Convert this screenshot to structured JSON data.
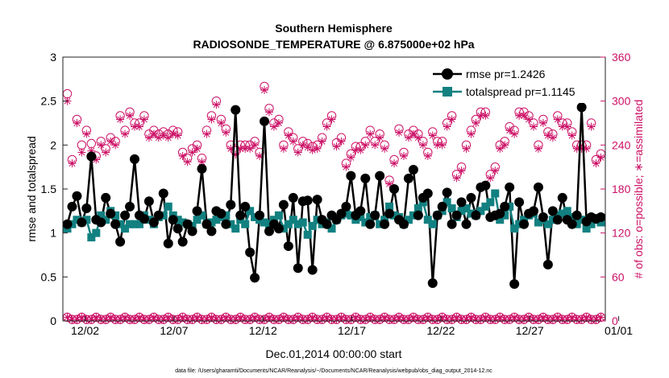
{
  "chart_data": {
    "type": "line",
    "title": "Southern Hemisphere",
    "subtitle": "RADIOSONDE_TEMPERATURE @ 6.875000e+02 hPa",
    "xlabel": "Dec.01,2014 00:00:00 start",
    "ylabel_left": "rmse and totalspread",
    "ylabel_right": "# of obs: o=possible; ∗=assimilated",
    "ylim_left": [
      0,
      3
    ],
    "ylim_right": [
      0,
      360
    ],
    "xlim": [
      0.75,
      31.25
    ],
    "grid": false,
    "legend_position": "top-right",
    "yticks_left": [
      "0",
      "0.5",
      "1",
      "1.5",
      "2",
      "2.5",
      "3"
    ],
    "yticks_right": [
      "0",
      "60",
      "120",
      "180",
      "240",
      "300",
      "360"
    ],
    "xticks": [
      {
        "day": 2,
        "label": "12/02"
      },
      {
        "day": 7,
        "label": "12/07"
      },
      {
        "day": 12,
        "label": "12/12"
      },
      {
        "day": 17,
        "label": "12/17"
      },
      {
        "day": 22,
        "label": "12/22"
      },
      {
        "day": 27,
        "label": "12/27"
      },
      {
        "day": 32,
        "label": "01/01"
      }
    ],
    "colors": {
      "rmse": "#000000",
      "spread": "#128080",
      "obs": "#cc1166"
    },
    "series": [
      {
        "name": "rmse pr=1.2426",
        "key": "rmse",
        "values": [
          1.1,
          1.3,
          1.42,
          1.12,
          1.28,
          1.87,
          1.15,
          1.12,
          1.4,
          1.22,
          1.1,
          0.9,
          1.2,
          1.3,
          1.84,
          1.2,
          1.16,
          1.36,
          1.12,
          1.2,
          1.45,
          0.88,
          1.15,
          1.05,
          0.9,
          1.1,
          1.02,
          1.25,
          1.73,
          1.1,
          1.02,
          1.25,
          1.22,
          1.1,
          1.32,
          2.4,
          1.2,
          1.3,
          0.78,
          0.49,
          1.2,
          2.27,
          1.02,
          1.1,
          1.05,
          1.32,
          0.85,
          1.4,
          0.6,
          1.36,
          1.37,
          0.58,
          1.38,
          1.15,
          1.1,
          1.2,
          1.15,
          1.22,
          1.3,
          1.65,
          1.2,
          1.25,
          1.62,
          1.1,
          1.2,
          1.65,
          1.1,
          1.22,
          1.5,
          1.15,
          1.1,
          1.62,
          1.72,
          1.2,
          1.4,
          1.45,
          0.43,
          1.2,
          1.3,
          1.46,
          1.1,
          1.2,
          1.35,
          1.1,
          1.4,
          1.2,
          1.52,
          1.54,
          1.18,
          1.2,
          1.22,
          1.3,
          1.52,
          0.42,
          1.35,
          1.1,
          1.22,
          1.25,
          1.52,
          1.18,
          0.64,
          1.25,
          1.15,
          1.4,
          1.15,
          1.1,
          1.2,
          2.43,
          1.13,
          1.18,
          1.16,
          1.18
        ]
      },
      {
        "name": "totalspread pr=1.1145",
        "key": "spread",
        "values": [
          1.05,
          1.1,
          1.15,
          1.12,
          1.15,
          0.95,
          1.0,
          1.2,
          1.15,
          1.25,
          1.2,
          1.1,
          1.05,
          1.1,
          1.1,
          1.1,
          1.2,
          1.15,
          1.1,
          1.18,
          1.2,
          1.3,
          1.2,
          1.15,
          1.12,
          1.1,
          1.08,
          1.15,
          1.2,
          1.1,
          1.12,
          1.15,
          1.18,
          1.2,
          1.1,
          1.05,
          1.15,
          1.1,
          1.25,
          1.18,
          1.15,
          1.12,
          1.1,
          1.15,
          1.2,
          1.05,
          1.1,
          1.15,
          1.1,
          1.12,
          0.98,
          1.08,
          1.15,
          1.1,
          1.12,
          1.05,
          1.15,
          1.2,
          1.22,
          1.2,
          1.15,
          1.18,
          1.12,
          1.18,
          1.2,
          1.1,
          1.15,
          1.3,
          1.2,
          1.18,
          1.1,
          1.15,
          1.2,
          1.28,
          1.35,
          1.15,
          1.1,
          1.2,
          1.25,
          1.35,
          1.28,
          1.18,
          1.25,
          1.28,
          1.22,
          1.2,
          1.25,
          1.3,
          1.35,
          1.45,
          1.15,
          1.2,
          1.3,
          1.05,
          1.1,
          1.15,
          1.2,
          1.22,
          1.12,
          1.15,
          1.1,
          1.15,
          1.2,
          1.22,
          1.25,
          1.18,
          1.1,
          1.15,
          1.05,
          1.1,
          1.15,
          1.12
        ]
      },
      {
        "name": "possible",
        "key": "obs_possible",
        "values": [
          310,
          220,
          275,
          240,
          260,
          242,
          225,
          245,
          235,
          250,
          245,
          280,
          260,
          285,
          270,
          270,
          280,
          255,
          260,
          255,
          258,
          255,
          260,
          258,
          230,
          222,
          235,
          240,
          222,
          260,
          280,
          300,
          275,
          262,
          240,
          232,
          240,
          240,
          240,
          245,
          230,
          320,
          290,
          270,
          275,
          240,
          258,
          250,
          235,
          245,
          242,
          238,
          240,
          250,
          270,
          280,
          243,
          250,
          215,
          228,
          238,
          238,
          245,
          260,
          245,
          255,
          240,
          192,
          220,
          262,
          230,
          255,
          260,
          255,
          245,
          230,
          258,
          245,
          245,
          270,
          280,
          200,
          210,
          240,
          260,
          275,
          285,
          285,
          200,
          210,
          240,
          245,
          265,
          260,
          285,
          285,
          280,
          270,
          240,
          275,
          258,
          255,
          280,
          270,
          270,
          258,
          240,
          240,
          240,
          270,
          220,
          228
        ]
      },
      {
        "name": "assimilated",
        "key": "obs_assimilated",
        "values": [
          300,
          215,
          270,
          230,
          255,
          232,
          220,
          240,
          230,
          245,
          240,
          275,
          255,
          280,
          265,
          265,
          275,
          250,
          255,
          250,
          253,
          250,
          255,
          253,
          225,
          217,
          230,
          235,
          217,
          255,
          275,
          295,
          270,
          257,
          235,
          227,
          235,
          235,
          235,
          240,
          225,
          315,
          285,
          265,
          270,
          235,
          253,
          245,
          230,
          240,
          237,
          233,
          235,
          245,
          265,
          275,
          238,
          245,
          210,
          223,
          233,
          233,
          240,
          255,
          240,
          250,
          235,
          187,
          215,
          257,
          225,
          250,
          255,
          250,
          240,
          225,
          253,
          240,
          240,
          265,
          275,
          195,
          205,
          235,
          255,
          270,
          280,
          280,
          195,
          205,
          235,
          240,
          260,
          255,
          280,
          280,
          275,
          265,
          235,
          270,
          253,
          250,
          275,
          265,
          265,
          253,
          235,
          235,
          235,
          265,
          215,
          223
        ]
      }
    ]
  },
  "footer": {
    "data_file": "data file: /Users/gharamti/Documents/NCAR/Reanalysis/~/Documents/NCAR/Reanalysis/webpub/obs_diag_output_2014-12.nc"
  }
}
